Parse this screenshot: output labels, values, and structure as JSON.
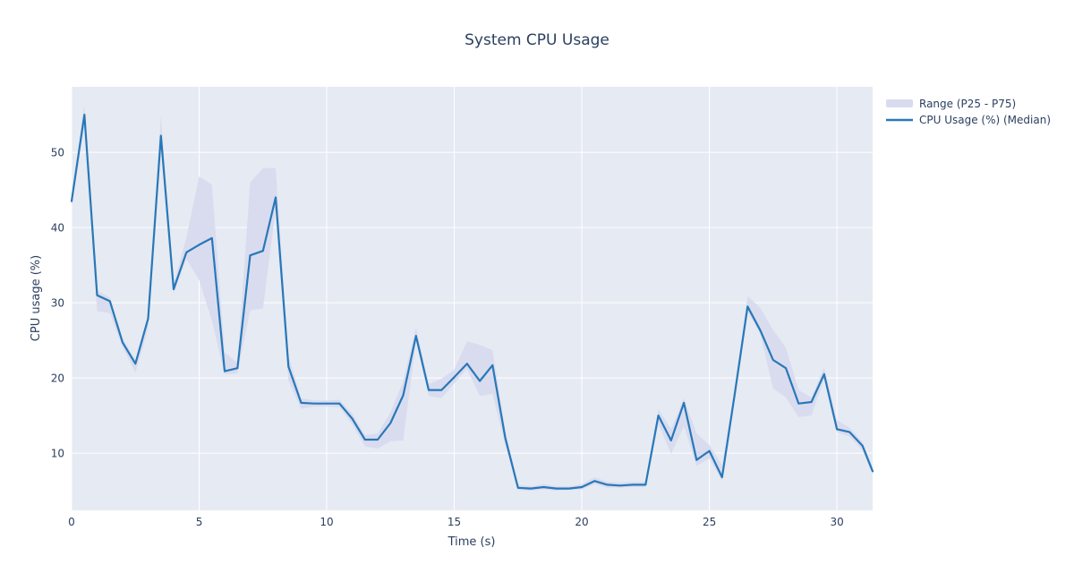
{
  "chart_data": {
    "type": "line",
    "title": "System CPU Usage",
    "xlabel": "Time (s)",
    "ylabel": "CPU usage (%)",
    "xlim": [
      0,
      31.4
    ],
    "ylim": [
      2.4,
      58.7
    ],
    "xticks": [
      0,
      5,
      10,
      15,
      20,
      25,
      30
    ],
    "yticks": [
      10,
      20,
      30,
      40,
      50
    ],
    "grid": true,
    "legend_position": "top-right-outside",
    "legend": [
      {
        "label": "Range (P25 - P75)",
        "swatch": "band"
      },
      {
        "label": "CPU Usage (%) (Median)",
        "swatch": "line"
      }
    ],
    "colors": {
      "median_line": "#2878b8",
      "band_fill": "#d9dcef",
      "plot_bg": "#e6eaf3",
      "grid": "#ffffff",
      "text": "#2a3f5f"
    },
    "x": [
      0,
      0.5,
      1,
      1.5,
      2,
      2.5,
      3,
      3.5,
      4,
      4.5,
      5,
      5.5,
      6,
      6.5,
      7,
      7.5,
      8,
      8.5,
      9,
      9.5,
      10,
      10.5,
      11,
      11.5,
      12,
      12.5,
      13,
      13.5,
      14,
      14.5,
      15,
      15.5,
      16,
      16.5,
      17,
      17.5,
      18,
      18.5,
      19,
      19.5,
      20,
      20.5,
      21,
      21.5,
      22,
      22.5,
      23,
      23.5,
      24,
      24.5,
      25,
      25.5,
      26,
      26.5,
      27,
      27.5,
      28,
      28.5,
      29,
      29.5,
      30,
      30.5,
      31,
      31.4
    ],
    "series": [
      {
        "name": "CPU Usage (%) (Median)",
        "type": "line",
        "values": [
          43.5,
          55.0,
          31.0,
          30.2,
          24.7,
          21.9,
          27.9,
          52.2,
          31.8,
          36.7,
          37.7,
          38.6,
          20.9,
          21.3,
          36.3,
          36.9,
          44.0,
          21.5,
          16.7,
          16.6,
          16.6,
          16.6,
          14.6,
          11.8,
          11.8,
          14.0,
          17.7,
          25.6,
          18.4,
          18.4,
          20.1,
          21.9,
          19.6,
          21.7,
          12.0,
          5.4,
          5.3,
          5.5,
          5.3,
          5.3,
          5.5,
          6.3,
          5.8,
          5.7,
          5.8,
          5.8,
          15.0,
          11.7,
          16.7,
          9.1,
          10.3,
          6.8,
          18.0,
          29.5,
          26.3,
          22.4,
          21.3,
          16.6,
          16.8,
          20.5,
          13.2,
          12.8,
          11.0,
          7.6
        ]
      },
      {
        "name": "Range (P25 - P75)",
        "type": "band",
        "p25": [
          42.9,
          53.6,
          28.9,
          28.6,
          24.1,
          20.7,
          26.6,
          51.2,
          31.2,
          35.8,
          33.0,
          27.6,
          20.5,
          20.6,
          29.0,
          29.2,
          42.5,
          19.6,
          15.9,
          16.2,
          16.2,
          16.1,
          13.8,
          10.9,
          10.6,
          11.6,
          11.7,
          24.9,
          17.6,
          17.3,
          19.3,
          21.2,
          17.6,
          17.9,
          11.0,
          5.1,
          5.0,
          5.2,
          5.0,
          5.1,
          5.2,
          5.9,
          5.4,
          5.4,
          5.5,
          5.5,
          13.9,
          9.9,
          13.6,
          8.3,
          9.3,
          6.3,
          17.4,
          28.8,
          25.8,
          18.6,
          17.4,
          14.8,
          15.0,
          19.9,
          12.8,
          12.2,
          10.4,
          7.2
        ],
        "p75": [
          44.1,
          56.3,
          31.6,
          30.7,
          25.3,
          22.4,
          28.3,
          54.8,
          32.5,
          38.7,
          46.8,
          45.7,
          23.4,
          22.0,
          46.0,
          47.9,
          47.9,
          23.0,
          17.3,
          17.0,
          17.0,
          17.1,
          15.3,
          12.4,
          12.6,
          15.4,
          19.6,
          26.7,
          19.2,
          19.9,
          21.1,
          24.9,
          24.4,
          23.7,
          13.0,
          5.8,
          5.6,
          5.9,
          5.6,
          5.6,
          5.9,
          6.8,
          6.2,
          6.1,
          6.2,
          6.2,
          15.9,
          13.2,
          17.3,
          12.6,
          11.1,
          8.4,
          18.7,
          30.9,
          29.3,
          26.4,
          24.0,
          18.4,
          17.4,
          21.4,
          14.4,
          13.4,
          11.5,
          8.1
        ]
      }
    ]
  }
}
